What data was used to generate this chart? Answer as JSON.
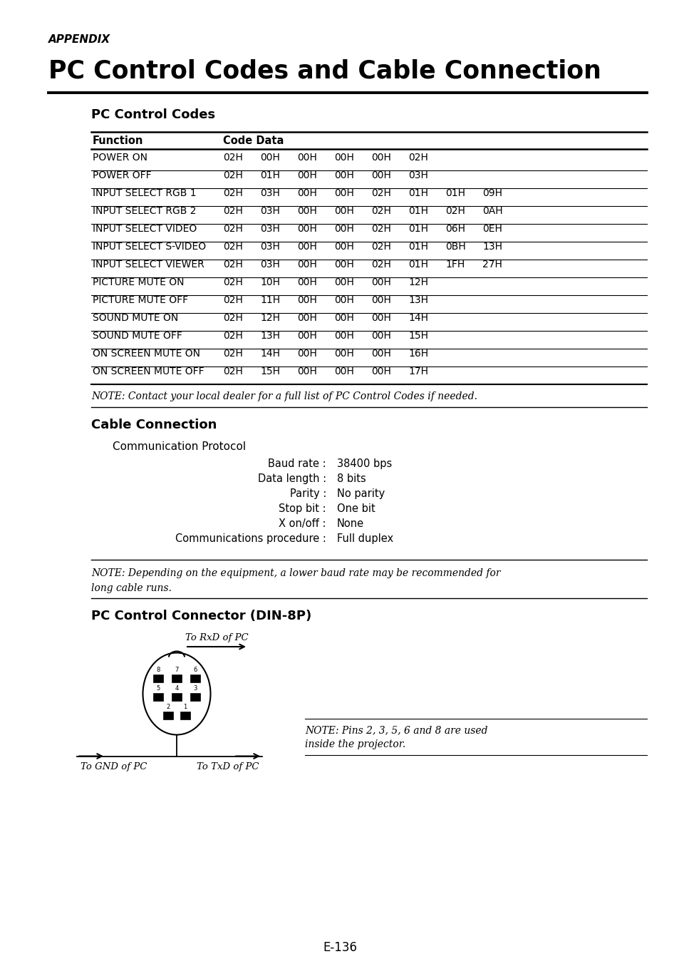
{
  "bg_color": "#ffffff",
  "appendix_text": "APPENDIX",
  "main_title": "PC Control Codes and Cable Connection",
  "section1_title": "PC Control Codes",
  "table_rows": [
    [
      "POWER ON",
      "02H",
      "00H",
      "00H",
      "00H",
      "00H",
      "02H",
      "",
      ""
    ],
    [
      "POWER OFF",
      "02H",
      "01H",
      "00H",
      "00H",
      "00H",
      "03H",
      "",
      ""
    ],
    [
      "INPUT SELECT RGB 1",
      "02H",
      "03H",
      "00H",
      "00H",
      "02H",
      "01H",
      "01H",
      "09H"
    ],
    [
      "INPUT SELECT RGB 2",
      "02H",
      "03H",
      "00H",
      "00H",
      "02H",
      "01H",
      "02H",
      "0AH"
    ],
    [
      "INPUT SELECT VIDEO",
      "02H",
      "03H",
      "00H",
      "00H",
      "02H",
      "01H",
      "06H",
      "0EH"
    ],
    [
      "INPUT SELECT S-VIDEO",
      "02H",
      "03H",
      "00H",
      "00H",
      "02H",
      "01H",
      "0BH",
      "13H"
    ],
    [
      "INPUT SELECT VIEWER",
      "02H",
      "03H",
      "00H",
      "00H",
      "02H",
      "01H",
      "1FH",
      "27H"
    ],
    [
      "PICTURE MUTE ON",
      "02H",
      "10H",
      "00H",
      "00H",
      "00H",
      "12H",
      "",
      ""
    ],
    [
      "PICTURE MUTE OFF",
      "02H",
      "11H",
      "00H",
      "00H",
      "00H",
      "13H",
      "",
      ""
    ],
    [
      "SOUND MUTE ON",
      "02H",
      "12H",
      "00H",
      "00H",
      "00H",
      "14H",
      "",
      ""
    ],
    [
      "SOUND MUTE OFF",
      "02H",
      "13H",
      "00H",
      "00H",
      "00H",
      "15H",
      "",
      ""
    ],
    [
      "ON SCREEN MUTE ON",
      "02H",
      "14H",
      "00H",
      "00H",
      "00H",
      "16H",
      "",
      ""
    ],
    [
      "ON SCREEN MUTE OFF",
      "02H",
      "15H",
      "00H",
      "00H",
      "00H",
      "17H",
      "",
      ""
    ]
  ],
  "note1": "NOTE: Contact your local dealer for a full list of PC Control Codes if needed.",
  "section2_title": "Cable Connection",
  "comm_protocol_label": "Communication Protocol",
  "comm_params": [
    [
      "Baud rate",
      "38400 bps"
    ],
    [
      "Data length",
      "8 bits"
    ],
    [
      "Parity",
      "No parity"
    ],
    [
      "Stop bit",
      "One bit"
    ],
    [
      "X on/off",
      "None"
    ],
    [
      "Communications procedure",
      "Full duplex"
    ]
  ],
  "note2_line1": "NOTE: Depending on the equipment, a lower baud rate may be recommended for",
  "note2_line2": "long cable runs.",
  "section3_title": "PC Control Connector (DIN-8P)",
  "rxd_label": "To RxD of PC",
  "gnd_label": "To GND of PC",
  "txd_label": "To TxD of PC",
  "note3_line1": "NOTE: Pins 2, 3, 5, 6 and 8 are used",
  "note3_line2": "inside the projector.",
  "page_number": "E-136"
}
